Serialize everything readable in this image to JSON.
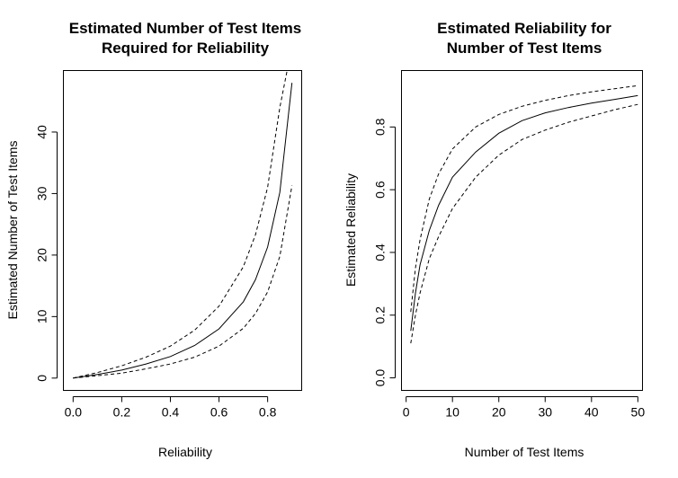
{
  "chart_data": [
    {
      "type": "line",
      "title_lines": [
        "Estimated Number of Test Items",
        "Required for Reliability"
      ],
      "xlabel": "Reliability",
      "ylabel": "Estimated Number of Test Items",
      "xlim": [
        -0.04,
        0.94
      ],
      "ylim": [
        -2,
        50
      ],
      "xticks": [
        "0.0",
        "0.2",
        "0.4",
        "0.6",
        "0.8"
      ],
      "yticks": [
        "0",
        "10",
        "20",
        "30",
        "40"
      ],
      "grid": false,
      "series": [
        {
          "style": "solid",
          "x": [
            0.0,
            0.1,
            0.2,
            0.3,
            0.4,
            0.5,
            0.6,
            0.7,
            0.75,
            0.8,
            0.85,
            0.9
          ],
          "y": [
            0.0,
            0.6,
            1.3,
            2.3,
            3.5,
            5.3,
            8.0,
            12.4,
            16.0,
            21.3,
            30.2,
            48.0
          ]
        },
        {
          "style": "dashed",
          "x": [
            0.0,
            0.1,
            0.2,
            0.3,
            0.4,
            0.5,
            0.6,
            0.7,
            0.75,
            0.8,
            0.85,
            0.88
          ],
          "y": [
            0.0,
            0.9,
            2.0,
            3.4,
            5.2,
            7.8,
            11.7,
            18.1,
            23.3,
            31.0,
            44.0,
            50.0
          ]
        },
        {
          "style": "dashed",
          "x": [
            0.0,
            0.1,
            0.2,
            0.3,
            0.4,
            0.5,
            0.6,
            0.7,
            0.75,
            0.8,
            0.85,
            0.9
          ],
          "y": [
            0.0,
            0.4,
            0.8,
            1.5,
            2.3,
            3.4,
            5.2,
            8.1,
            10.5,
            14.0,
            19.8,
            31.3
          ]
        }
      ]
    },
    {
      "type": "line",
      "title_lines": [
        "Estimated Reliability for",
        "Number of Test Items"
      ],
      "xlabel": "Number of Test Items",
      "ylabel": "Estimated Reliability",
      "xlim": [
        -1,
        51
      ],
      "ylim": [
        -0.04,
        0.98
      ],
      "xticks": [
        "0",
        "10",
        "20",
        "30",
        "40",
        "50"
      ],
      "yticks": [
        "0.0",
        "0.2",
        "0.4",
        "0.6",
        "0.8"
      ],
      "grid": false,
      "series": [
        {
          "style": "solid",
          "x": [
            1,
            2,
            3,
            5,
            7,
            10,
            15,
            20,
            25,
            30,
            35,
            40,
            45,
            50
          ],
          "y": [
            0.15,
            0.27,
            0.36,
            0.47,
            0.55,
            0.64,
            0.72,
            0.78,
            0.82,
            0.845,
            0.862,
            0.876,
            0.888,
            0.9
          ]
        },
        {
          "style": "dashed",
          "x": [
            1,
            2,
            3,
            5,
            7,
            10,
            15,
            20,
            25,
            30,
            35,
            40,
            45,
            50
          ],
          "y": [
            0.21,
            0.35,
            0.44,
            0.57,
            0.65,
            0.73,
            0.8,
            0.84,
            0.866,
            0.885,
            0.9,
            0.912,
            0.922,
            0.932
          ]
        },
        {
          "style": "dashed",
          "x": [
            1,
            2,
            3,
            5,
            7,
            10,
            15,
            20,
            25,
            30,
            35,
            40,
            45,
            50
          ],
          "y": [
            0.11,
            0.2,
            0.27,
            0.38,
            0.45,
            0.54,
            0.64,
            0.71,
            0.76,
            0.79,
            0.815,
            0.835,
            0.855,
            0.872
          ]
        }
      ]
    }
  ]
}
